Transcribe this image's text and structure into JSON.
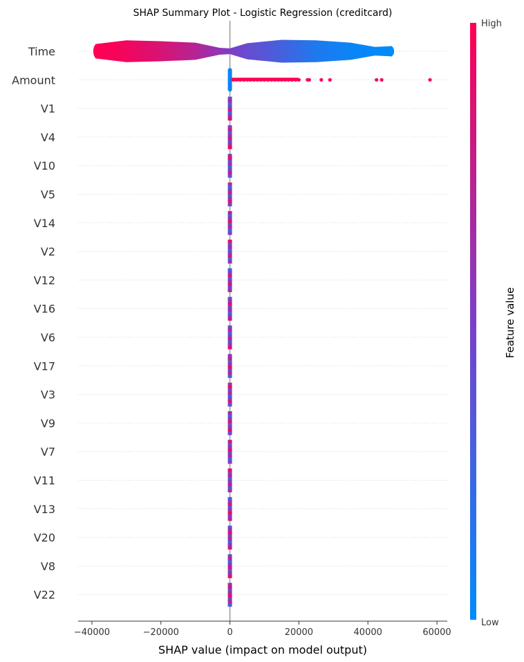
{
  "chart_data": {
    "type": "scatter",
    "subtype": "shap-beeswarm",
    "title": "SHAP Summary Plot - Logistic Regression (creditcard)",
    "xlabel": "SHAP value (impact on model output)",
    "xlim": [
      -44000,
      63000
    ],
    "xticks": [
      -40000,
      -20000,
      0,
      20000,
      40000,
      60000
    ],
    "xtick_labels": [
      "−40000",
      "−20000",
      "0",
      "20000",
      "40000",
      "60000"
    ],
    "features": [
      "Time",
      "Amount",
      "V1",
      "V4",
      "V10",
      "V5",
      "V14",
      "V2",
      "V12",
      "V16",
      "V6",
      "V17",
      "V3",
      "V9",
      "V7",
      "V11",
      "V13",
      "V20",
      "V8",
      "V22"
    ],
    "time_distribution": {
      "x_min": -39000,
      "x_max": 47000,
      "segments": [
        {
          "x": -39000,
          "half_width": 0.25,
          "feature_value": 1.0
        },
        {
          "x": -30000,
          "half_width": 0.38,
          "feature_value": 0.95
        },
        {
          "x": -20000,
          "half_width": 0.35,
          "feature_value": 0.85
        },
        {
          "x": -10000,
          "half_width": 0.3,
          "feature_value": 0.72
        },
        {
          "x": -3000,
          "half_width": 0.12,
          "feature_value": 0.58
        },
        {
          "x": 0,
          "half_width": 0.1,
          "feature_value": 0.52
        },
        {
          "x": 5000,
          "half_width": 0.28,
          "feature_value": 0.42
        },
        {
          "x": 15000,
          "half_width": 0.4,
          "feature_value": 0.28
        },
        {
          "x": 25000,
          "half_width": 0.38,
          "feature_value": 0.12
        },
        {
          "x": 35000,
          "half_width": 0.3,
          "feature_value": 0.05
        },
        {
          "x": 42000,
          "half_width": 0.15,
          "feature_value": 0.02
        },
        {
          "x": 47000,
          "half_width": 0.18,
          "feature_value": 0.0
        }
      ]
    },
    "amount_outliers": [
      1000,
      2000,
      3000,
      4000,
      5000,
      6000,
      7000,
      8000,
      9000,
      10000,
      11000,
      12000,
      13000,
      14000,
      15000,
      16000,
      17000,
      18000,
      19000,
      20000,
      22500,
      23000,
      26500,
      29000,
      42500,
      44000,
      58000
    ],
    "colorbar": {
      "label": "Feature value",
      "high_label": "High",
      "low_label": "Low",
      "high_color": "#ff0052",
      "mid_color": "#7b40c8",
      "low_color": "#008bfb"
    }
  }
}
